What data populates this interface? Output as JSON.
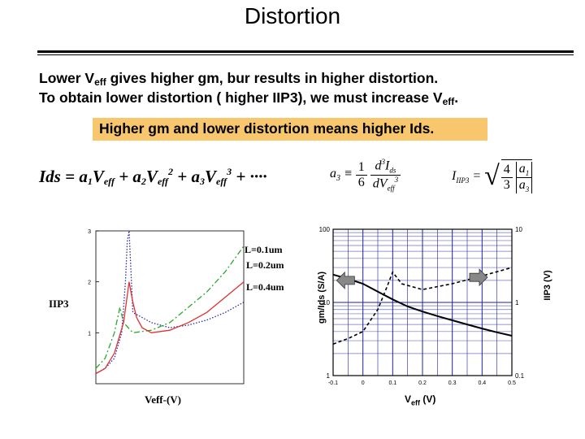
{
  "slide": {
    "title": "Distortion",
    "line1_pre": "Lower V",
    "line1_sub": "eff",
    "line1_post": " gives higher gm, bur results in higher distortion.",
    "line2_pre": "To obtain lower distortion ( higher IIP3), we must increase V",
    "line2_sub": "eff",
    "line2_post": ".",
    "highlight": "Higher gm and lower distortion means higher Ids."
  },
  "equations": {
    "ids": {
      "lhs": "Ids",
      "equals": " = ",
      "t1_coef": "a",
      "t1_coef_sub": "1",
      "t1_var": "V",
      "t1_var_sub": "eff",
      "plus1": " + ",
      "t2_coef": "a",
      "t2_coef_sub": "2",
      "t2_var": "V",
      "t2_var_sub": "eff",
      "t2_exp": "2",
      "plus2": " + ",
      "t3_coef": "a",
      "t3_coef_sub": "3",
      "t3_var": "V",
      "t3_var_sub": "eff",
      "t3_exp": "3",
      "tail": " + ····"
    },
    "a3": {
      "lhs": "a",
      "lhs_sub": "3",
      "equiv": " ≡ ",
      "frac1_num": "1",
      "frac1_den": "6",
      "frac2_num_d": "d",
      "frac2_num_exp": "3",
      "frac2_num_var": "I",
      "frac2_num_sub": "ds",
      "frac2_den_d": "dV",
      "frac2_den_sub": "eff",
      "frac2_den_exp": "3"
    },
    "iip3": {
      "lhs": "I",
      "lhs_sub": "IIP3",
      "equals": " = ",
      "frac1_num": "4",
      "frac1_den": "3",
      "frac2_num": "a",
      "frac2_num_sub": "1",
      "frac2_den": "a",
      "frac2_den_sub": "3"
    }
  },
  "chart_data": [
    {
      "type": "line",
      "xlabel": "Veff-(V)",
      "ylabel": "IIP3",
      "yticks": [
        "3",
        "2",
        "1"
      ],
      "ylim": [
        0,
        3
      ],
      "series": [
        {
          "name": "L=0.1um",
          "color": "#2a2aa8",
          "style": "dotted",
          "x": [
            0.0,
            0.05,
            0.1,
            0.14,
            0.16,
            0.17,
            0.18,
            0.2,
            0.3,
            0.4,
            0.5,
            0.6,
            0.7,
            0.8
          ],
          "y": [
            0.2,
            0.3,
            0.5,
            1.0,
            2.0,
            2.8,
            3.0,
            1.4,
            1.2,
            1.1,
            1.15,
            1.25,
            1.4,
            1.6
          ]
        },
        {
          "name": "L=0.2um",
          "color": "#2aa82a",
          "style": "dash-dot",
          "x": [
            0.0,
            0.05,
            0.1,
            0.13,
            0.15,
            0.2,
            0.3,
            0.4,
            0.5,
            0.6,
            0.7,
            0.8
          ],
          "y": [
            0.3,
            0.5,
            1.0,
            1.5,
            1.2,
            1.0,
            1.05,
            1.2,
            1.5,
            1.8,
            2.2,
            2.7
          ]
        },
        {
          "name": "L=0.4um",
          "color": "#e03030",
          "style": "solid",
          "x": [
            0.0,
            0.05,
            0.1,
            0.15,
            0.18,
            0.2,
            0.22,
            0.25,
            0.3,
            0.4,
            0.5,
            0.6,
            0.7,
            0.8
          ],
          "y": [
            0.2,
            0.3,
            0.6,
            1.2,
            2.0,
            1.6,
            1.3,
            1.1,
            1.0,
            1.05,
            1.2,
            1.4,
            1.7,
            2.0
          ]
        }
      ],
      "labels": [
        "L=0.1um",
        "L=0.2um",
        "L=0.4um"
      ]
    },
    {
      "type": "line",
      "xlabel_pre": "V",
      "xlabel_sub": "eff",
      "xlabel_post": " (V)",
      "ylabel_left": "gm/Ids (S/A)",
      "ylabel_right": "IIP3 (V)",
      "x_ticks": [
        "-0.1",
        "0",
        "0.1",
        "0.2",
        "0.3",
        "0.4",
        "0.5"
      ],
      "yleft_ticks": [
        "100",
        "10",
        "1"
      ],
      "yright_ticks": [
        "10",
        "1",
        "0.1"
      ],
      "xlim": [
        -0.1,
        0.5
      ],
      "ylim_left": [
        1,
        100
      ],
      "ylim_right": [
        0.1,
        10
      ],
      "y_scale": "log",
      "grid": true,
      "series": [
        {
          "name": "gm/Ids",
          "axis": "left",
          "style": "solid",
          "x": [
            -0.1,
            -0.05,
            0.0,
            0.05,
            0.1,
            0.15,
            0.2,
            0.25,
            0.3,
            0.35,
            0.4,
            0.45,
            0.5
          ],
          "y": [
            24,
            21,
            18,
            14,
            11,
            8.8,
            7.5,
            6.5,
            5.7,
            5.0,
            4.4,
            3.9,
            3.5
          ]
        },
        {
          "name": "IIP3",
          "axis": "right",
          "style": "dashed",
          "x": [
            -0.1,
            -0.05,
            0.0,
            0.05,
            0.08,
            0.1,
            0.13,
            0.2,
            0.3,
            0.4,
            0.5
          ],
          "y": [
            0.27,
            0.32,
            0.4,
            0.8,
            1.6,
            2.6,
            1.8,
            1.5,
            1.8,
            2.3,
            3.0
          ]
        }
      ]
    }
  ]
}
